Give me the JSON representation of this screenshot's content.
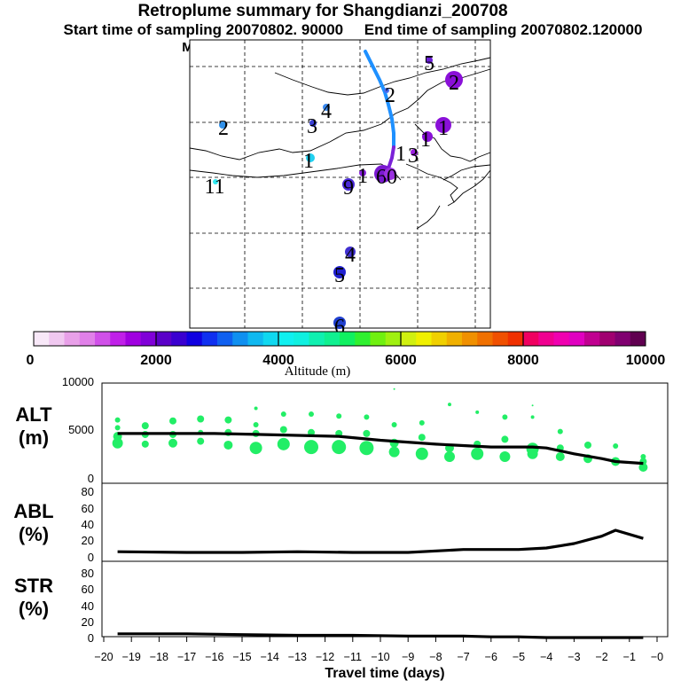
{
  "header": {
    "title": "Retroplume summary for Shangdianzi_200708",
    "sampling": "Start time of sampling 20070802. 90000     End time of sampling 20070802.120000",
    "met": "Meteorological data used is ECMWF"
  },
  "colors": {
    "track_upper": "#1e90ff",
    "track_lower": "#7b22d8",
    "dots": "#22ee66",
    "line": "#000000"
  },
  "map": {
    "markers": [
      {
        "label": "5",
        "color": "#6a1fd6",
        "r": 4
      },
      {
        "label": "2",
        "color": "#8a10d8",
        "r": 10
      },
      {
        "label": "2",
        "color": "#4a6cf0",
        "r": 3
      },
      {
        "label": "4",
        "color": "#3a8af0",
        "r": 4
      },
      {
        "label": "2",
        "color": "#3090e8",
        "r": 4
      },
      {
        "label": "3",
        "color": "#3a40d8",
        "r": 4
      },
      {
        "label": "1",
        "color": "#8a10d8",
        "r": 9
      },
      {
        "label": "1",
        "color": "#8a10d8",
        "r": 6
      },
      {
        "label": "3",
        "color": "#9a20e0",
        "r": 4
      },
      {
        "label": "1",
        "color": "#20d0f0",
        "r": 5
      },
      {
        "label": "1",
        "color": "#8a20e0",
        "r": 4
      },
      {
        "label": "6",
        "color": "#7a18d0",
        "r": 10
      },
      {
        "label": "0",
        "color": "#9a30e0",
        "r": 7
      },
      {
        "label": "11",
        "color": "#30e8f0",
        "r": 3
      },
      {
        "label": "9",
        "color": "#4a2ad8",
        "r": 7
      },
      {
        "label": "4",
        "color": "#4030d0",
        "r": 6
      },
      {
        "label": "5",
        "color": "#2020d0",
        "r": 7
      },
      {
        "label": "6",
        "color": "#2040d0",
        "r": 7
      },
      {
        "label": "1",
        "color": "#000000",
        "r": 0
      }
    ]
  },
  "colorbar": {
    "colors": [
      "#f8e8f8",
      "#f0c8f0",
      "#e8a0e8",
      "#e080e8",
      "#d050e8",
      "#c020e8",
      "#a000e0",
      "#8000d8",
      "#5a00c8",
      "#3a00d0",
      "#1000e0",
      "#1030f0",
      "#1060f0",
      "#1090f0",
      "#10b8f0",
      "#10d8f0",
      "#10f0f0",
      "#10f0e0",
      "#10f0b0",
      "#10f090",
      "#10f060",
      "#30f030",
      "#70f010",
      "#a0f010",
      "#d0f010",
      "#f0f000",
      "#f0d000",
      "#f0b000",
      "#f09000",
      "#f07000",
      "#f05000",
      "#f03000",
      "#f00060",
      "#f00090",
      "#f000b0",
      "#e000c0",
      "#c00090",
      "#a00070",
      "#800070",
      "#600050"
    ],
    "tick_labels": [
      "0",
      "2000",
      "4000",
      "6000",
      "8000",
      "10000"
    ],
    "label": "Altitude (m)"
  },
  "chart_data": [
    {
      "type": "line",
      "panel": "ALT",
      "title": "ALT",
      "ylabel": "(m)",
      "ylim": [
        0,
        10000
      ],
      "yticks": [
        "10000",
        "5000",
        "0"
      ],
      "x": [
        -19.5,
        -17.5,
        -16,
        -14.5,
        -13,
        -11.5,
        -10,
        -8,
        -6,
        -5,
        -4.5,
        -4,
        -3,
        -2,
        -1.5,
        -0.5
      ],
      "values": [
        4600,
        4600,
        4600,
        4500,
        4400,
        4300,
        3900,
        3500,
        3200,
        3200,
        3200,
        3100,
        2500,
        2000,
        1700,
        1500
      ],
      "series_dots": [
        {
          "x": -19.5,
          "y": 3600,
          "s": 6
        },
        {
          "x": -19.5,
          "y": 4300,
          "s": 5
        },
        {
          "x": -19.5,
          "y": 5200,
          "s": 3
        },
        {
          "x": -19.5,
          "y": 6000,
          "s": 3
        },
        {
          "x": -18.5,
          "y": 3500,
          "s": 4
        },
        {
          "x": -18.5,
          "y": 4500,
          "s": 4
        },
        {
          "x": -18.5,
          "y": 5400,
          "s": 4
        },
        {
          "x": -17.5,
          "y": 3600,
          "s": 5
        },
        {
          "x": -17.5,
          "y": 4500,
          "s": 4
        },
        {
          "x": -17.5,
          "y": 5900,
          "s": 4
        },
        {
          "x": -16.5,
          "y": 3800,
          "s": 4
        },
        {
          "x": -16.5,
          "y": 4700,
          "s": 3
        },
        {
          "x": -16.5,
          "y": 6100,
          "s": 4
        },
        {
          "x": -15.5,
          "y": 3400,
          "s": 5
        },
        {
          "x": -15.5,
          "y": 4700,
          "s": 4
        },
        {
          "x": -15.5,
          "y": 6000,
          "s": 4
        },
        {
          "x": -14.5,
          "y": 3100,
          "s": 7
        },
        {
          "x": -14.5,
          "y": 4600,
          "s": 4
        },
        {
          "x": -14.5,
          "y": 5500,
          "s": 3
        },
        {
          "x": -14.5,
          "y": 7200,
          "s": 2
        },
        {
          "x": -13.5,
          "y": 3500,
          "s": 7
        },
        {
          "x": -13.5,
          "y": 5000,
          "s": 4
        },
        {
          "x": -13.5,
          "y": 6600,
          "s": 3
        },
        {
          "x": -12.5,
          "y": 3200,
          "s": 8
        },
        {
          "x": -12.5,
          "y": 4700,
          "s": 4
        },
        {
          "x": -12.5,
          "y": 6600,
          "s": 3
        },
        {
          "x": -11.5,
          "y": 3200,
          "s": 8
        },
        {
          "x": -11.5,
          "y": 4600,
          "s": 4
        },
        {
          "x": -11.5,
          "y": 6400,
          "s": 3
        },
        {
          "x": -10.5,
          "y": 3100,
          "s": 8
        },
        {
          "x": -10.5,
          "y": 4600,
          "s": 4
        },
        {
          "x": -10.5,
          "y": 6300,
          "s": 3
        },
        {
          "x": -9.5,
          "y": 2700,
          "s": 6
        },
        {
          "x": -9.5,
          "y": 3600,
          "s": 5
        },
        {
          "x": -9.5,
          "y": 5500,
          "s": 3
        },
        {
          "x": -9.5,
          "y": 9200,
          "s": 1
        },
        {
          "x": -8.5,
          "y": 2500,
          "s": 7
        },
        {
          "x": -8.5,
          "y": 4200,
          "s": 4
        },
        {
          "x": -8.5,
          "y": 5700,
          "s": 3
        },
        {
          "x": -7.5,
          "y": 2200,
          "s": 6
        },
        {
          "x": -7.5,
          "y": 3100,
          "s": 5
        },
        {
          "x": -7.5,
          "y": 7600,
          "s": 2
        },
        {
          "x": -6.5,
          "y": 2500,
          "s": 7
        },
        {
          "x": -6.5,
          "y": 3500,
          "s": 4
        },
        {
          "x": -6.5,
          "y": 6800,
          "s": 2
        },
        {
          "x": -5.5,
          "y": 2200,
          "s": 6
        },
        {
          "x": -5.5,
          "y": 4000,
          "s": 4
        },
        {
          "x": -5.5,
          "y": 6300,
          "s": 3
        },
        {
          "x": -4.5,
          "y": 2500,
          "s": 6
        },
        {
          "x": -4.5,
          "y": 3000,
          "s": 7
        },
        {
          "x": -4.5,
          "y": 6300,
          "s": 2
        },
        {
          "x": -4.5,
          "y": 7500,
          "s": 1
        },
        {
          "x": -3.5,
          "y": 2200,
          "s": 5
        },
        {
          "x": -3.5,
          "y": 3100,
          "s": 4
        },
        {
          "x": -3.5,
          "y": 4800,
          "s": 3
        },
        {
          "x": -2.5,
          "y": 2000,
          "s": 5
        },
        {
          "x": -2.5,
          "y": 3400,
          "s": 4
        },
        {
          "x": -1.5,
          "y": 1700,
          "s": 5
        },
        {
          "x": -1.5,
          "y": 3300,
          "s": 3
        },
        {
          "x": -0.5,
          "y": 1100,
          "s": 5
        },
        {
          "x": -0.5,
          "y": 1700,
          "s": 4
        },
        {
          "x": -0.5,
          "y": 2200,
          "s": 3
        }
      ]
    },
    {
      "type": "line",
      "panel": "ABL",
      "title": "ABL",
      "ylabel": "(%)",
      "ylim": [
        0,
        90
      ],
      "yticks": [
        "80",
        "60",
        "40",
        "20",
        "0"
      ],
      "x": [
        -19.5,
        -17,
        -15,
        -13,
        -11,
        -9,
        -7,
        -5,
        -4,
        -3,
        -2,
        -1.5,
        -0.5
      ],
      "values": [
        7,
        6,
        6,
        7,
        6,
        6,
        10,
        10,
        12,
        18,
        28,
        36,
        25
      ]
    },
    {
      "type": "line",
      "panel": "STR",
      "title": "STR",
      "ylabel": "(%)",
      "ylim": [
        0,
        90
      ],
      "yticks": [
        "80",
        "60",
        "40",
        "20",
        "0"
      ],
      "x": [
        -19.5,
        -17,
        -15,
        -13,
        -11,
        -9,
        -7,
        -6,
        -5,
        -4,
        -3,
        -2,
        -1,
        -0.5
      ],
      "values": [
        5,
        5,
        4,
        3,
        3,
        2,
        2,
        1,
        1,
        0,
        0,
        0,
        0,
        0
      ]
    }
  ],
  "x_axis": {
    "ticks": [
      "−20",
      "−19",
      "−18",
      "−17",
      "−16",
      "−15",
      "−14",
      "−13",
      "−12",
      "−11",
      "−10",
      "−9",
      "−8",
      "−7",
      "−6",
      "−5",
      "−4",
      "−3",
      "−2",
      "−1",
      "−0"
    ],
    "xlim": [
      -20,
      0
    ],
    "label": "Travel time (days)"
  }
}
